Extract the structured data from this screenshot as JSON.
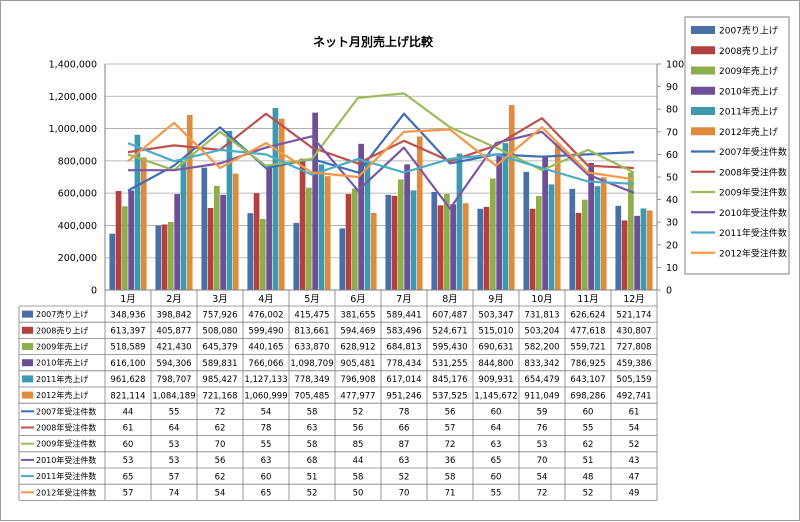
{
  "chart_data": {
    "type": "bar",
    "title": "ネット月別売上げ比較",
    "categories": [
      "1月",
      "2月",
      "3月",
      "4月",
      "5月",
      "6月",
      "7月",
      "8月",
      "9月",
      "10月",
      "11月",
      "12月"
    ],
    "ylim": [
      0,
      1400000
    ],
    "yticks": [
      "0",
      "200,000",
      "400,000",
      "600,000",
      "800,000",
      "1,000,000",
      "1,200,000",
      "1,400,000"
    ],
    "y2lim": [
      0,
      100
    ],
    "y2ticks": [
      "0",
      "10",
      "20",
      "30",
      "40",
      "50",
      "60",
      "70",
      "80",
      "90",
      "100"
    ],
    "grid": true,
    "legend_position": "right",
    "bar_series": [
      {
        "name": "2007売り上げ",
        "color": "#4a6fa5",
        "values": [
          348936,
          398842,
          757926,
          476002,
          415475,
          381655,
          589441,
          607487,
          503347,
          731813,
          626624,
          521174
        ]
      },
      {
        "name": "2008売り上げ",
        "color": "#b0413e",
        "values": [
          613397,
          405877,
          508080,
          599490,
          813661,
          594469,
          583496,
          524671,
          515010,
          503204,
          477618,
          430807
        ]
      },
      {
        "name": "2009年売上げ",
        "color": "#8fad4e",
        "values": [
          518589,
          421430,
          645379,
          440165,
          633870,
          628912,
          684813,
          595430,
          690631,
          582200,
          559721,
          727808
        ]
      },
      {
        "name": "2010年売上げ",
        "color": "#6e4e96",
        "values": [
          616100,
          594306,
          589831,
          766066,
          1098709,
          905481,
          778434,
          531255,
          844800,
          833342,
          786925,
          459386
        ]
      },
      {
        "name": "2011年売上げ",
        "color": "#3b9ab0",
        "values": [
          961628,
          798707,
          985427,
          1127133,
          778349,
          796908,
          617014,
          845176,
          909931,
          654479,
          643107,
          505159
        ]
      },
      {
        "name": "2012年売上げ",
        "color": "#e08a3c",
        "values": [
          821114,
          1084189,
          721168,
          1060999,
          705485,
          477977,
          951246,
          537525,
          1145672,
          911049,
          698286,
          492741
        ]
      }
    ],
    "line_series": [
      {
        "name": "2007年受注件数",
        "color": "#3d6eb5",
        "values": [
          44,
          55,
          72,
          54,
          58,
          52,
          78,
          56,
          60,
          59,
          60,
          61
        ]
      },
      {
        "name": "2008年受注件数",
        "color": "#c0504d",
        "values": [
          61,
          64,
          62,
          78,
          63,
          56,
          66,
          57,
          64,
          76,
          55,
          54
        ]
      },
      {
        "name": "2009年受注件数",
        "color": "#9bbb59",
        "values": [
          60,
          53,
          70,
          55,
          58,
          85,
          87,
          72,
          63,
          53,
          62,
          52
        ]
      },
      {
        "name": "2010年受注件数",
        "color": "#7a58a6",
        "values": [
          53,
          53,
          56,
          63,
          68,
          44,
          63,
          36,
          65,
          70,
          51,
          43
        ]
      },
      {
        "name": "2011年受注件数",
        "color": "#4bacc6",
        "values": [
          65,
          57,
          62,
          60,
          51,
          58,
          52,
          58,
          60,
          54,
          48,
          47
        ]
      },
      {
        "name": "2012年受注件数",
        "color": "#f79646",
        "values": [
          57,
          74,
          54,
          65,
          52,
          50,
          70,
          71,
          55,
          72,
          52,
          49
        ]
      }
    ],
    "table_rows": [
      {
        "label": "2007売り上げ",
        "type": "bar",
        "color": "#4a6fa5",
        "cells": [
          "348,936",
          "398,842",
          "757,926",
          "476,002",
          "415,475",
          "381,655",
          "589,441",
          "607,487",
          "503,347",
          "731,813",
          "626,624",
          "521,174"
        ]
      },
      {
        "label": "2008売り上げ",
        "type": "bar",
        "color": "#b0413e",
        "cells": [
          "613,397",
          "405,877",
          "508,080",
          "599,490",
          "813,661",
          "594,469",
          "583,496",
          "524,671",
          "515,010",
          "503,204",
          "477,618",
          "430,807"
        ]
      },
      {
        "label": "2009年売上げ",
        "type": "bar",
        "color": "#8fad4e",
        "cells": [
          "518,589",
          "421,430",
          "645,379",
          "440,165",
          "633,870",
          "628,912",
          "684,813",
          "595,430",
          "690,631",
          "582,200",
          "559,721",
          "727,808"
        ]
      },
      {
        "label": "2010年売上げ",
        "type": "bar",
        "color": "#6e4e96",
        "cells": [
          "616,100",
          "594,306",
          "589,831",
          "766,066",
          "1,098,709",
          "905,481",
          "778,434",
          "531,255",
          "844,800",
          "833,342",
          "786,925",
          "459,386"
        ]
      },
      {
        "label": "2011年売上げ",
        "type": "bar",
        "color": "#3b9ab0",
        "cells": [
          "961,628",
          "798,707",
          "985,427",
          "1,127,133",
          "778,349",
          "796,908",
          "617,014",
          "845,176",
          "909,931",
          "654,479",
          "643,107",
          "505,159"
        ]
      },
      {
        "label": "2012年売上げ",
        "type": "bar",
        "color": "#e08a3c",
        "cells": [
          "821,114",
          "1,084,189",
          "721,168",
          "1,060,999",
          "705,485",
          "477,977",
          "951,246",
          "537,525",
          "1,145,672",
          "911,049",
          "698,286",
          "492,741"
        ]
      },
      {
        "label": "2007年受注件数",
        "type": "line",
        "color": "#3d6eb5",
        "cells": [
          "44",
          "55",
          "72",
          "54",
          "58",
          "52",
          "78",
          "56",
          "60",
          "59",
          "60",
          "61"
        ]
      },
      {
        "label": "2008年受注件数",
        "type": "line",
        "color": "#c0504d",
        "cells": [
          "61",
          "64",
          "62",
          "78",
          "63",
          "56",
          "66",
          "57",
          "64",
          "76",
          "55",
          "54"
        ]
      },
      {
        "label": "2009年受注件数",
        "type": "line",
        "color": "#9bbb59",
        "cells": [
          "60",
          "53",
          "70",
          "55",
          "58",
          "85",
          "87",
          "72",
          "63",
          "53",
          "62",
          "52"
        ]
      },
      {
        "label": "2010年受注件数",
        "type": "line",
        "color": "#7a58a6",
        "cells": [
          "53",
          "53",
          "56",
          "63",
          "68",
          "44",
          "63",
          "36",
          "65",
          "70",
          "51",
          "43"
        ]
      },
      {
        "label": "2011年受注件数",
        "type": "line",
        "color": "#4bacc6",
        "cells": [
          "65",
          "57",
          "62",
          "60",
          "51",
          "58",
          "52",
          "58",
          "60",
          "54",
          "48",
          "47"
        ]
      },
      {
        "label": "2012年受注件数",
        "type": "line",
        "color": "#f79646",
        "cells": [
          "57",
          "74",
          "54",
          "65",
          "52",
          "50",
          "70",
          "71",
          "55",
          "72",
          "52",
          "49"
        ]
      }
    ]
  }
}
